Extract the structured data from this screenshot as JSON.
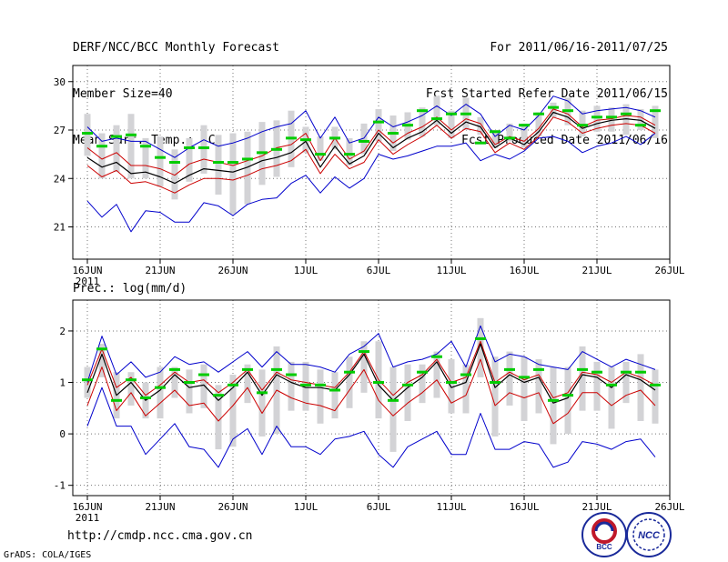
{
  "header": {
    "left_lines": [
      "DERF/NCC/BCC Monthly Forecast",
      "Member Size=40",
      "Mean Surf. Temp.: °C"
    ],
    "right_lines": [
      "For 2011/06/16-2011/07/25",
      "Fcst Started Refer Date 2011/06/15",
      "Fcst Produced Date 2011/06/16"
    ]
  },
  "footer": {
    "url": "http://cmdp.ncc.cma.gov.cn",
    "credit": "GrADS: COLA/IGES",
    "logo_bcc": "BCC",
    "logo_ncc": "NCC"
  },
  "colors": {
    "max_min": "#0000cc",
    "spread": "#cc0000",
    "mean": "#000000",
    "median": "#00cc00",
    "box": "#d3d3d6",
    "grid": "#777777"
  },
  "chart_data": [
    {
      "type": "line",
      "title": "Mean Surf. Temp.: °C",
      "x": [
        "16JUN 2011",
        "17JUN",
        "18JUN",
        "19JUN",
        "20JUN",
        "21JUN",
        "22JUN",
        "23JUN",
        "24JUN",
        "25JUN",
        "26JUN",
        "27JUN",
        "28JUN",
        "29JUN",
        "30JUN",
        "1JUL",
        "2JUL",
        "3JUL",
        "4JUL",
        "5JUL",
        "6JUL",
        "7JUL",
        "8JUL",
        "9JUL",
        "10JUL",
        "11JUL",
        "12JUL",
        "13JUL",
        "14JUL",
        "15JUL",
        "16JUL",
        "17JUL",
        "18JUL",
        "19JUL",
        "20JUL",
        "21JUL",
        "22JUL",
        "23JUL",
        "24JUL",
        "25JUL"
      ],
      "x_tick_labels": [
        "16JUN",
        "21JUN",
        "26JUN",
        "1JUL",
        "6JUL",
        "11JUL",
        "16JUL",
        "21JUL",
        "26JUL"
      ],
      "x_first_year": "2011",
      "ylim": [
        19,
        31
      ],
      "y_ticks": [
        21,
        24,
        27,
        30
      ],
      "grid": true,
      "series": [
        {
          "name": "max",
          "values": [
            27.2,
            26.3,
            26.5,
            26.3,
            26.3,
            25.8,
            25.3,
            25.9,
            26.4,
            26.0,
            26.2,
            26.5,
            26.9,
            27.2,
            27.4,
            28.2,
            26.5,
            27.8,
            26.2,
            26.5,
            27.8,
            27.2,
            27.5,
            27.9,
            28.5,
            27.9,
            28.6,
            28.0,
            26.6,
            27.3,
            27.0,
            27.9,
            29.1,
            28.8,
            28.0,
            28.2,
            28.3,
            28.4,
            28.2,
            27.8
          ]
        },
        {
          "name": "upper",
          "values": [
            25.9,
            25.2,
            25.6,
            24.8,
            24.8,
            24.6,
            24.2,
            24.9,
            25.2,
            25.0,
            24.8,
            25.1,
            25.4,
            25.9,
            26.1,
            26.8,
            25.1,
            26.5,
            25.2,
            25.7,
            27.0,
            26.2,
            26.8,
            27.2,
            27.8,
            27.0,
            27.7,
            27.4,
            26.1,
            26.6,
            26.3,
            27.1,
            28.3,
            28.0,
            27.2,
            27.6,
            27.7,
            27.9,
            27.8,
            27.3
          ]
        },
        {
          "name": "mean",
          "values": [
            25.3,
            24.7,
            25.0,
            24.3,
            24.4,
            24.1,
            23.7,
            24.2,
            24.6,
            24.5,
            24.4,
            24.7,
            25.1,
            25.3,
            25.6,
            26.3,
            24.7,
            26.0,
            24.9,
            25.4,
            26.8,
            25.9,
            26.5,
            26.9,
            27.6,
            26.8,
            27.5,
            27.2,
            25.9,
            26.5,
            26.1,
            26.9,
            28.1,
            27.8,
            27.1,
            27.4,
            27.6,
            27.7,
            27.6,
            27.1
          ]
        },
        {
          "name": "lower",
          "values": [
            24.8,
            24.1,
            24.5,
            23.7,
            23.8,
            23.5,
            23.1,
            23.6,
            24.0,
            24.0,
            23.9,
            24.2,
            24.6,
            24.8,
            25.1,
            25.8,
            24.3,
            25.5,
            24.6,
            25.0,
            26.4,
            25.5,
            26.1,
            26.6,
            27.3,
            26.5,
            27.1,
            26.9,
            25.6,
            26.2,
            25.8,
            26.6,
            27.8,
            27.5,
            26.8,
            27.1,
            27.3,
            27.4,
            27.3,
            26.8
          ]
        },
        {
          "name": "min",
          "values": [
            22.6,
            21.6,
            22.4,
            20.7,
            22.0,
            21.9,
            21.3,
            21.3,
            22.5,
            22.3,
            21.7,
            22.4,
            22.7,
            22.8,
            23.7,
            24.2,
            23.1,
            24.1,
            23.4,
            24.0,
            25.5,
            25.2,
            25.4,
            25.7,
            26.0,
            26.0,
            26.2,
            25.1,
            25.5,
            25.2,
            25.7,
            26.5,
            26.6,
            26.3,
            25.6,
            26.0,
            26.2,
            26.6,
            26.1,
            26.8
          ]
        },
        {
          "name": "median",
          "values": [
            26.8,
            26.0,
            26.6,
            26.7,
            26.0,
            25.3,
            25.0,
            25.9,
            25.9,
            25.0,
            25.0,
            25.2,
            25.6,
            25.8,
            26.5,
            26.4,
            25.5,
            26.5,
            25.5,
            26.3,
            27.5,
            26.8,
            27.3,
            28.2,
            27.7,
            28.0,
            28.0,
            26.2,
            26.9,
            26.5,
            27.3,
            28.0,
            28.4,
            28.2,
            27.3,
            27.8,
            27.8,
            28.0,
            27.3,
            28.2
          ]
        },
        {
          "name": "box_high",
          "values": [
            28.0,
            26.8,
            27.3,
            28.0,
            26.5,
            26.6,
            25.8,
            26.5,
            27.3,
            26.7,
            26.8,
            26.9,
            27.5,
            27.6,
            28.2,
            27.2,
            26.6,
            27.2,
            26.5,
            27.4,
            28.3,
            27.9,
            28.1,
            28.4,
            29.1,
            28.2,
            29.0,
            27.8,
            27.0,
            27.4,
            27.4,
            28.1,
            28.7,
            29.0,
            28.2,
            28.5,
            28.4,
            28.6,
            28.3,
            28.5
          ]
        },
        {
          "name": "box_low",
          "values": [
            25.4,
            24.0,
            24.4,
            24.0,
            24.0,
            23.5,
            22.7,
            23.8,
            24.3,
            23.0,
            21.8,
            22.4,
            23.6,
            24.1,
            24.7,
            25.6,
            25.1,
            25.8,
            24.8,
            25.5,
            26.3,
            25.7,
            26.4,
            26.6,
            27.3,
            26.5,
            27.0,
            26.7,
            25.9,
            26.3,
            25.9,
            26.6,
            27.8,
            27.3,
            26.6,
            26.9,
            26.9,
            26.7,
            27.0,
            26.5
          ]
        }
      ]
    },
    {
      "type": "line",
      "title": "Prec.: log(mm/d)",
      "x_tick_labels": [
        "16JUN",
        "21JUN",
        "26JUN",
        "1JUL",
        "6JUL",
        "11JUL",
        "16JUL",
        "21JUL",
        "26JUL"
      ],
      "x_first_year": "2011",
      "ylim": [
        -1.2,
        2.6
      ],
      "y_ticks": [
        -1,
        0,
        1,
        2
      ],
      "grid": true,
      "series": [
        {
          "name": "max",
          "values": [
            1.0,
            1.9,
            1.15,
            1.4,
            1.1,
            1.2,
            1.5,
            1.35,
            1.4,
            1.2,
            1.4,
            1.6,
            1.3,
            1.6,
            1.35,
            1.35,
            1.3,
            1.2,
            1.55,
            1.7,
            1.95,
            1.3,
            1.4,
            1.45,
            1.55,
            1.8,
            1.3,
            2.1,
            1.4,
            1.55,
            1.5,
            1.35,
            1.3,
            1.25,
            1.6,
            1.45,
            1.3,
            1.45,
            1.35,
            1.25
          ]
        },
        {
          "name": "upper",
          "values": [
            0.95,
            1.65,
            0.9,
            1.1,
            0.75,
            0.95,
            1.2,
            1.0,
            1.05,
            0.8,
            1.0,
            1.25,
            0.85,
            1.2,
            1.05,
            1.0,
            0.95,
            0.9,
            1.2,
            1.6,
            1.05,
            0.75,
            1.0,
            1.15,
            1.45,
            1.0,
            1.1,
            1.8,
            1.0,
            1.2,
            1.05,
            1.15,
            0.7,
            0.8,
            1.2,
            1.15,
            1.0,
            1.2,
            1.1,
            0.95
          ]
        },
        {
          "name": "mean",
          "values": [
            0.8,
            1.55,
            0.75,
            1.0,
            0.65,
            0.85,
            1.15,
            0.9,
            0.95,
            0.65,
            0.9,
            1.2,
            0.75,
            1.15,
            1.0,
            0.9,
            0.9,
            0.85,
            1.15,
            1.55,
            0.95,
            0.65,
            0.9,
            1.1,
            1.4,
            0.9,
            1.0,
            1.75,
            0.9,
            1.15,
            1.0,
            1.1,
            0.6,
            0.7,
            1.15,
            1.1,
            0.9,
            1.15,
            1.05,
            0.85
          ]
        },
        {
          "name": "lower",
          "values": [
            0.55,
            1.3,
            0.45,
            0.8,
            0.35,
            0.6,
            0.85,
            0.55,
            0.6,
            0.25,
            0.55,
            0.9,
            0.4,
            0.85,
            0.7,
            0.6,
            0.55,
            0.45,
            0.85,
            1.25,
            0.65,
            0.35,
            0.6,
            0.8,
            1.05,
            0.6,
            0.75,
            1.45,
            0.55,
            0.8,
            0.7,
            0.8,
            0.2,
            0.4,
            0.8,
            0.8,
            0.55,
            0.75,
            0.85,
            0.55
          ]
        },
        {
          "name": "min",
          "values": [
            0.15,
            0.9,
            0.15,
            0.15,
            -0.4,
            -0.1,
            0.2,
            -0.25,
            -0.3,
            -0.65,
            -0.1,
            0.1,
            -0.4,
            0.15,
            -0.25,
            -0.25,
            -0.4,
            -0.1,
            -0.05,
            0.05,
            -0.4,
            -0.65,
            -0.25,
            -0.1,
            0.05,
            -0.4,
            -0.4,
            0.4,
            -0.3,
            -0.3,
            -0.15,
            -0.2,
            -0.65,
            -0.55,
            -0.15,
            -0.2,
            -0.3,
            -0.15,
            -0.1,
            -0.45
          ]
        },
        {
          "name": "median",
          "values": [
            1.05,
            1.65,
            0.65,
            1.05,
            0.7,
            0.9,
            1.25,
            1.0,
            1.15,
            0.75,
            0.95,
            1.25,
            0.8,
            1.25,
            1.15,
            0.95,
            0.95,
            0.85,
            1.2,
            1.6,
            1.0,
            0.65,
            0.95,
            1.2,
            1.5,
            1.0,
            1.15,
            1.85,
            1.0,
            1.25,
            1.1,
            1.25,
            0.65,
            0.75,
            1.25,
            1.2,
            0.95,
            1.2,
            1.2,
            0.95
          ]
        },
        {
          "name": "box_high",
          "values": [
            1.3,
            1.75,
            1.2,
            1.2,
            1.0,
            1.3,
            1.3,
            1.25,
            1.35,
            0.95,
            1.15,
            1.35,
            1.25,
            1.7,
            1.4,
            1.4,
            1.25,
            1.2,
            1.5,
            1.8,
            1.8,
            1.3,
            1.35,
            1.35,
            1.6,
            1.45,
            1.35,
            2.25,
            1.5,
            1.6,
            1.5,
            1.45,
            1.3,
            1.3,
            1.7,
            1.4,
            1.3,
            1.4,
            1.55,
            1.25
          ]
        },
        {
          "name": "box_low",
          "values": [
            0.7,
            1.1,
            0.3,
            0.55,
            0.3,
            0.3,
            0.7,
            0.4,
            0.5,
            -0.3,
            -0.25,
            0.6,
            -0.05,
            0.0,
            0.45,
            0.45,
            0.2,
            0.3,
            0.5,
            0.8,
            0.3,
            -0.35,
            0.25,
            0.6,
            0.7,
            0.4,
            0.4,
            1.1,
            -0.05,
            0.55,
            0.25,
            0.4,
            -0.2,
            0.0,
            0.45,
            0.45,
            0.1,
            0.6,
            0.25,
            0.2
          ]
        }
      ]
    }
  ]
}
